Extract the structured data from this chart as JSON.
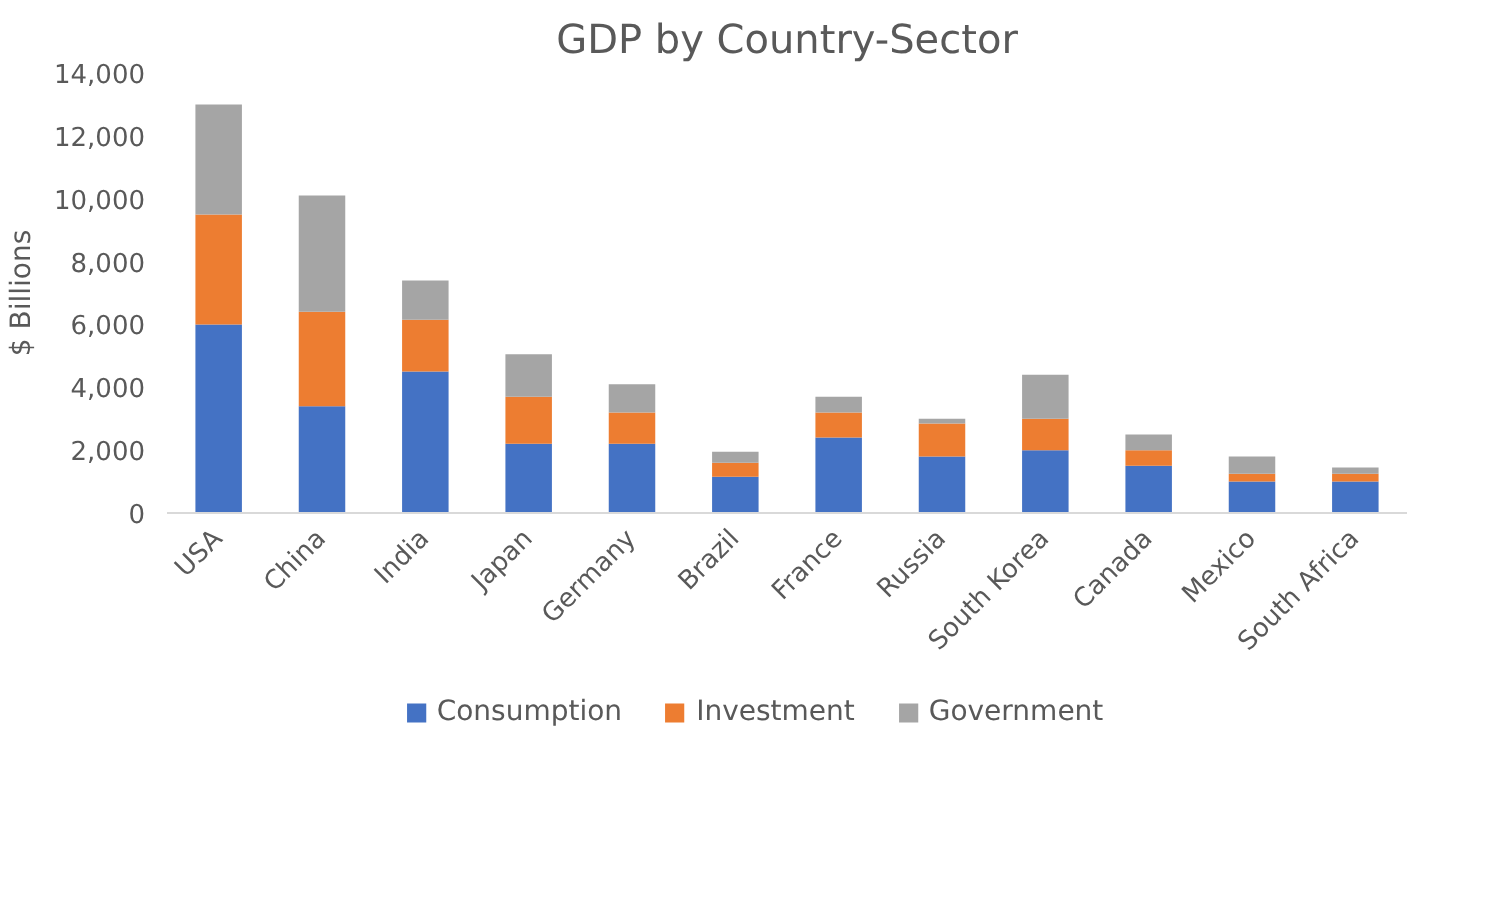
{
  "chart_data": {
    "type": "bar",
    "title": "GDP by Country-Sector",
    "ylabel": "$ Billions",
    "categories": [
      "USA",
      "China",
      "India",
      "Japan",
      "Germany",
      "Brazil",
      "France",
      "Russia",
      "South Korea",
      "Canada",
      "Mexico",
      "South Africa"
    ],
    "stacked": true,
    "series": [
      {
        "name": "Consumption",
        "color": "#4472c4",
        "values": [
          6000,
          3400,
          4500,
          2200,
          2200,
          1150,
          2400,
          1800,
          2000,
          1500,
          1000,
          1000
        ]
      },
      {
        "name": "Investment",
        "color": "#ed7d31",
        "values": [
          3500,
          3000,
          1650,
          1500,
          1000,
          450,
          800,
          1050,
          1000,
          500,
          250,
          250
        ]
      },
      {
        "name": "Government",
        "color": "#a5a5a5",
        "values": [
          3500,
          3700,
          1250,
          1350,
          900,
          350,
          500,
          150,
          1400,
          500,
          550,
          200
        ]
      }
    ],
    "ylim": [
      0,
      14000
    ],
    "yticks": [
      {
        "value": 0,
        "label": "0"
      },
      {
        "value": 2000,
        "label": "2,000"
      },
      {
        "value": 4000,
        "label": "4,000"
      },
      {
        "value": 6000,
        "label": "6,000"
      },
      {
        "value": 8000,
        "label": "8,000"
      },
      {
        "value": 10000,
        "label": "10,000"
      },
      {
        "value": 12000,
        "label": "12,000"
      },
      {
        "value": 14000,
        "label": "14,000"
      }
    ],
    "grid": false,
    "legend": "bottom"
  }
}
